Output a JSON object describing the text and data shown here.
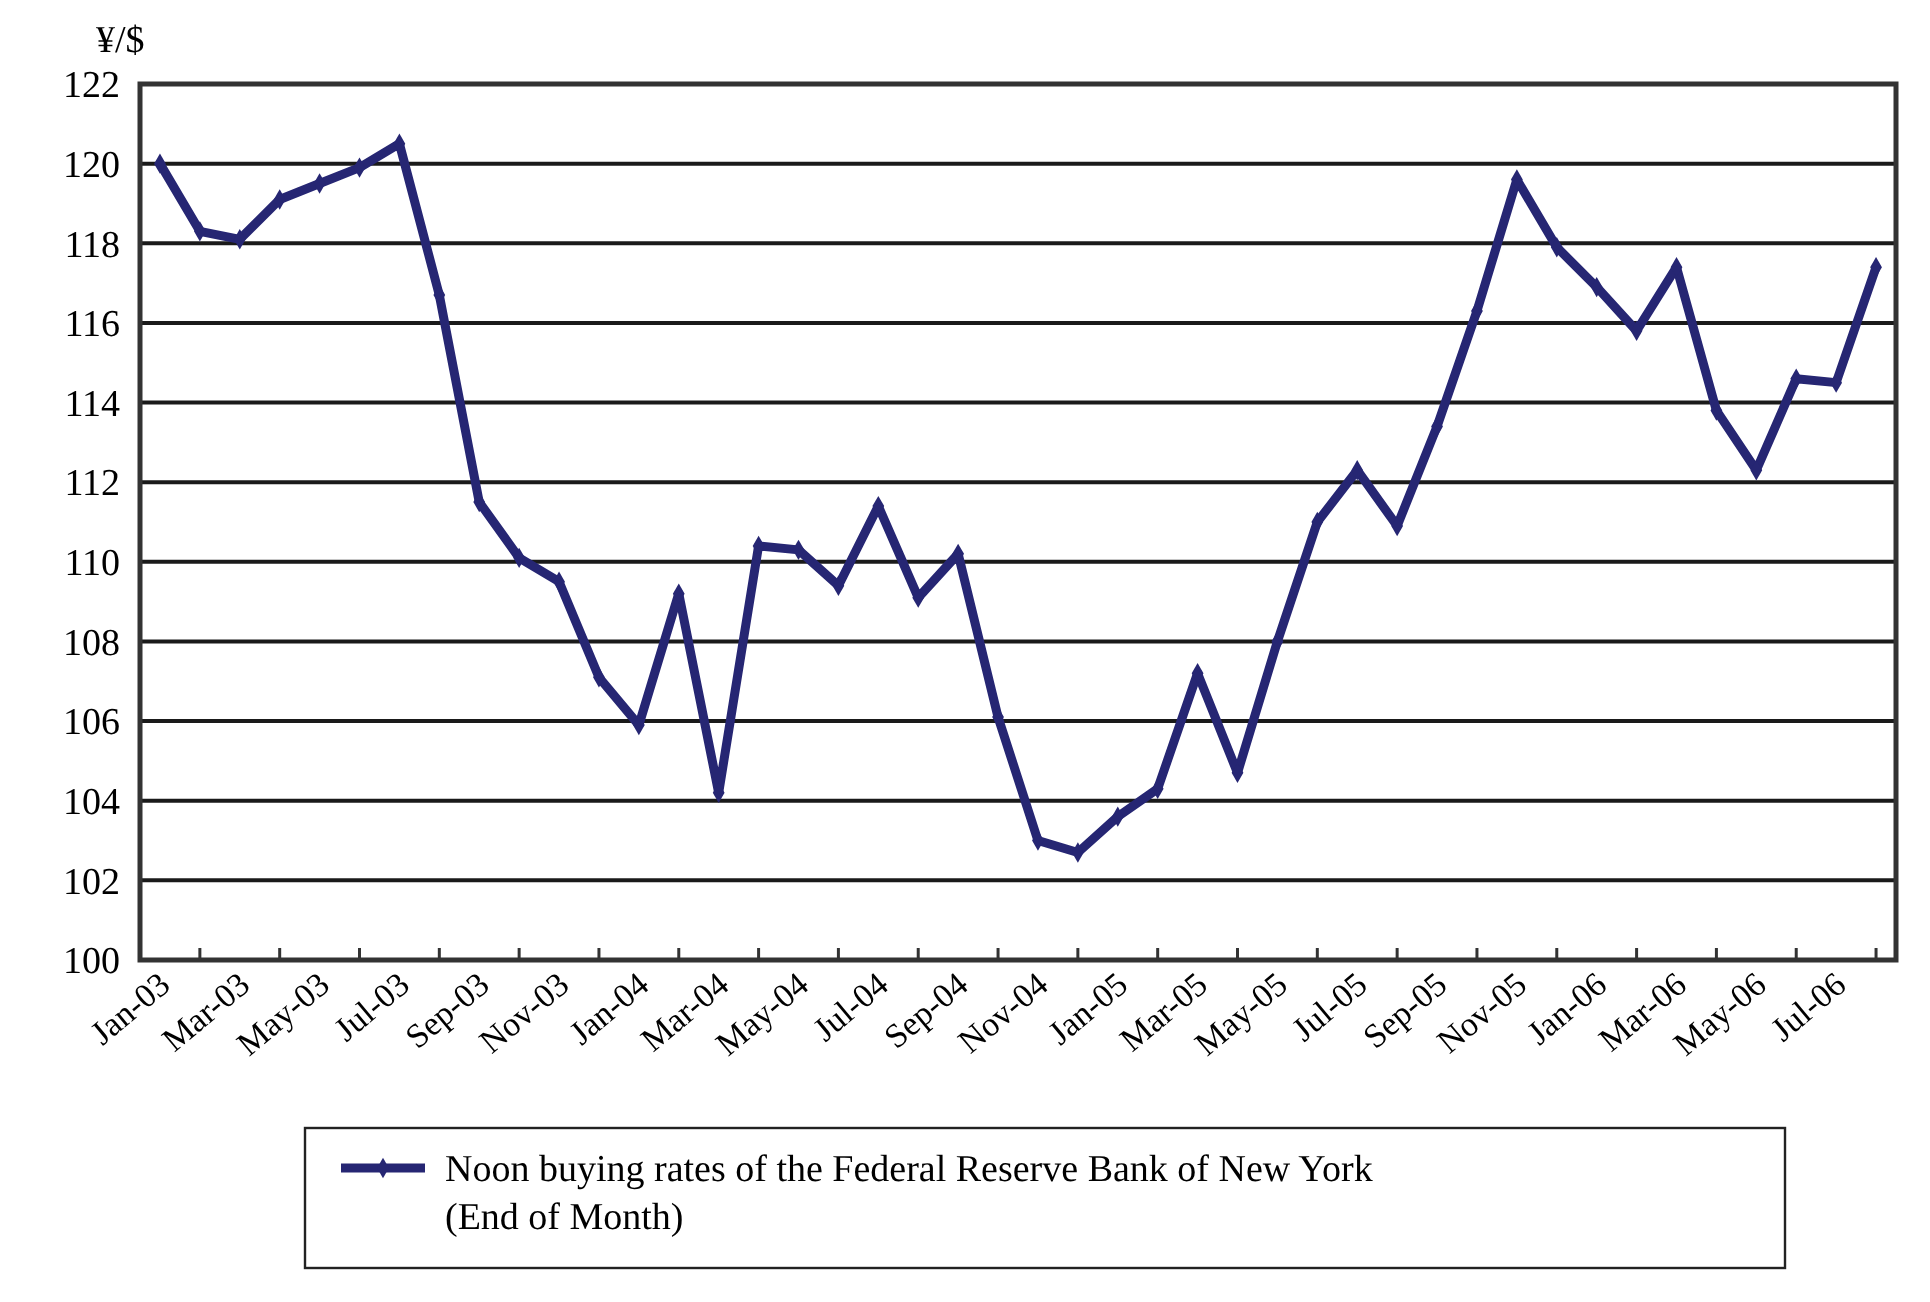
{
  "chart_data": {
    "type": "line",
    "ylabel": "¥/$",
    "categories": [
      "Jan-03",
      null,
      "Mar-03",
      null,
      "May-03",
      null,
      "Jul-03",
      null,
      "Sep-03",
      null,
      "Nov-03",
      null,
      "Jan-04",
      null,
      "Mar-04",
      null,
      "May-04",
      null,
      "Jul-04",
      null,
      "Sep-04",
      null,
      "Nov-04",
      null,
      "Jan-05",
      null,
      "Mar-05",
      null,
      "May-05",
      null,
      "Jul-05",
      null,
      "Sep-05",
      null,
      "Nov-05",
      null,
      "Jan-06",
      null,
      "Mar-06",
      null,
      "May-06",
      null,
      "Jul-06",
      null
    ],
    "series": [
      {
        "name": "Noon buying rates of the Federal Reserve Bank of New York (End of Month)",
        "color": "#262673",
        "values": [
          120.0,
          118.3,
          118.1,
          119.1,
          119.5,
          119.9,
          120.5,
          116.7,
          111.5,
          110.1,
          109.5,
          107.1,
          105.9,
          109.2,
          104.2,
          110.4,
          110.3,
          109.4,
          111.4,
          109.1,
          110.2,
          106.1,
          103.0,
          102.7,
          103.6,
          104.3,
          107.2,
          104.7,
          108.0,
          111.0,
          112.3,
          110.9,
          113.4,
          116.3,
          119.6,
          117.9,
          116.9,
          115.8,
          117.4,
          113.8,
          112.3,
          114.6,
          114.5,
          117.4
        ]
      }
    ],
    "ylim": [
      100,
      122
    ],
    "yticks": [
      100,
      102,
      104,
      106,
      108,
      110,
      112,
      114,
      116,
      118,
      120,
      122
    ],
    "grid": "y",
    "legend": "bottom",
    "marker": "diamond",
    "line_style": "solid"
  }
}
